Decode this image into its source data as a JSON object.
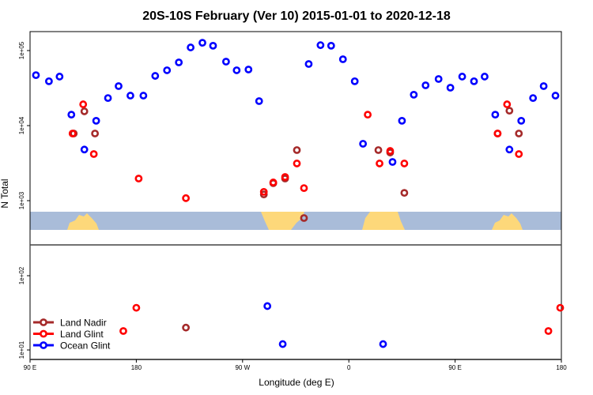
{
  "chart_data": {
    "type": "scatter",
    "title": "20S-10S February (Ver 10)   2015-01-01 to 2020-12-18",
    "xlabel": "Longitude (deg E)",
    "ylabel": "N Total",
    "x_scale_note": "continuous degrees east, 90 (90 E) to 540 (180), wrapping once",
    "xlim": [
      90,
      540
    ],
    "x_ticks": [
      {
        "value": 90,
        "label": "90 E"
      },
      {
        "value": 180,
        "label": "180"
      },
      {
        "value": 270,
        "label": "90 W"
      },
      {
        "value": 360,
        "label": "0"
      },
      {
        "value": 450,
        "label": "90 E"
      },
      {
        "value": 540,
        "label": "180"
      }
    ],
    "y_scale": "log",
    "y_ticks": [
      {
        "value": 100000,
        "label": "1e+05"
      },
      {
        "value": 10000,
        "label": "1e+04"
      },
      {
        "value": 1000,
        "label": "1e+03"
      },
      {
        "value": 100,
        "label": "1e+02"
      },
      {
        "value": 10,
        "label": "1e+01"
      }
    ],
    "legend": {
      "placement": "bottom-left"
    },
    "series": [
      {
        "name": "Land Nadir",
        "color": "#a52a2a",
        "points": [
          [
            127,
            7850
          ],
          [
            136,
            15500
          ],
          [
            145,
            7850
          ],
          [
            288,
            1210
          ],
          [
            296,
            1710
          ],
          [
            306,
            1970
          ],
          [
            316,
            4720
          ],
          [
            322,
            587
          ],
          [
            385,
            4720
          ],
          [
            395,
            4380
          ],
          [
            407,
            1270
          ],
          [
            486,
            7850
          ],
          [
            496,
            15800
          ],
          [
            504,
            7850
          ],
          [
            222,
            20
          ]
        ]
      },
      {
        "name": "Land Glint",
        "color": "#ff0000",
        "points": [
          [
            126,
            7850
          ],
          [
            135,
            19200
          ],
          [
            144,
            4180
          ],
          [
            182,
            1970
          ],
          [
            222,
            1080
          ],
          [
            288,
            1310
          ],
          [
            296,
            1750
          ],
          [
            306,
            2070
          ],
          [
            316,
            3130
          ],
          [
            322,
            1470
          ],
          [
            376,
            14000
          ],
          [
            386,
            3130
          ],
          [
            395,
            4600
          ],
          [
            407,
            3130
          ],
          [
            486,
            7850
          ],
          [
            494,
            19200
          ],
          [
            504,
            4180
          ],
          [
            169,
            18
          ],
          [
            180,
            37
          ],
          [
            529,
            18
          ],
          [
            539,
            37
          ]
        ]
      },
      {
        "name": "Ocean Glint",
        "color": "#0000ff",
        "points": [
          [
            95,
            47000
          ],
          [
            106,
            39000
          ],
          [
            115,
            45000
          ],
          [
            125,
            14000
          ],
          [
            136,
            4800
          ],
          [
            146,
            11600
          ],
          [
            156,
            23300
          ],
          [
            165,
            33600
          ],
          [
            175,
            25100
          ],
          [
            186,
            25100
          ],
          [
            196,
            46000
          ],
          [
            206,
            54600
          ],
          [
            216,
            69500
          ],
          [
            226,
            110000
          ],
          [
            236,
            127000
          ],
          [
            245,
            116000
          ],
          [
            256,
            71200
          ],
          [
            265,
            54600
          ],
          [
            275,
            55900
          ],
          [
            284,
            21200
          ],
          [
            326,
            66200
          ],
          [
            336,
            118000
          ],
          [
            345,
            116000
          ],
          [
            355,
            76600
          ],
          [
            365,
            39000
          ],
          [
            372,
            5730
          ],
          [
            397,
            3280
          ],
          [
            405,
            11600
          ],
          [
            415,
            25800
          ],
          [
            425,
            34400
          ],
          [
            436,
            41800
          ],
          [
            446,
            32000
          ],
          [
            456,
            45000
          ],
          [
            466,
            39000
          ],
          [
            475,
            45000
          ],
          [
            484,
            14000
          ],
          [
            496,
            4800
          ],
          [
            506,
            11600
          ],
          [
            516,
            23300
          ],
          [
            525,
            33600
          ],
          [
            535,
            25100
          ],
          [
            291,
            39
          ],
          [
            304,
            12
          ],
          [
            389,
            12
          ]
        ]
      }
    ]
  },
  "colors": {
    "ocean": "#a9bcd9",
    "land": "#fdd87a"
  }
}
